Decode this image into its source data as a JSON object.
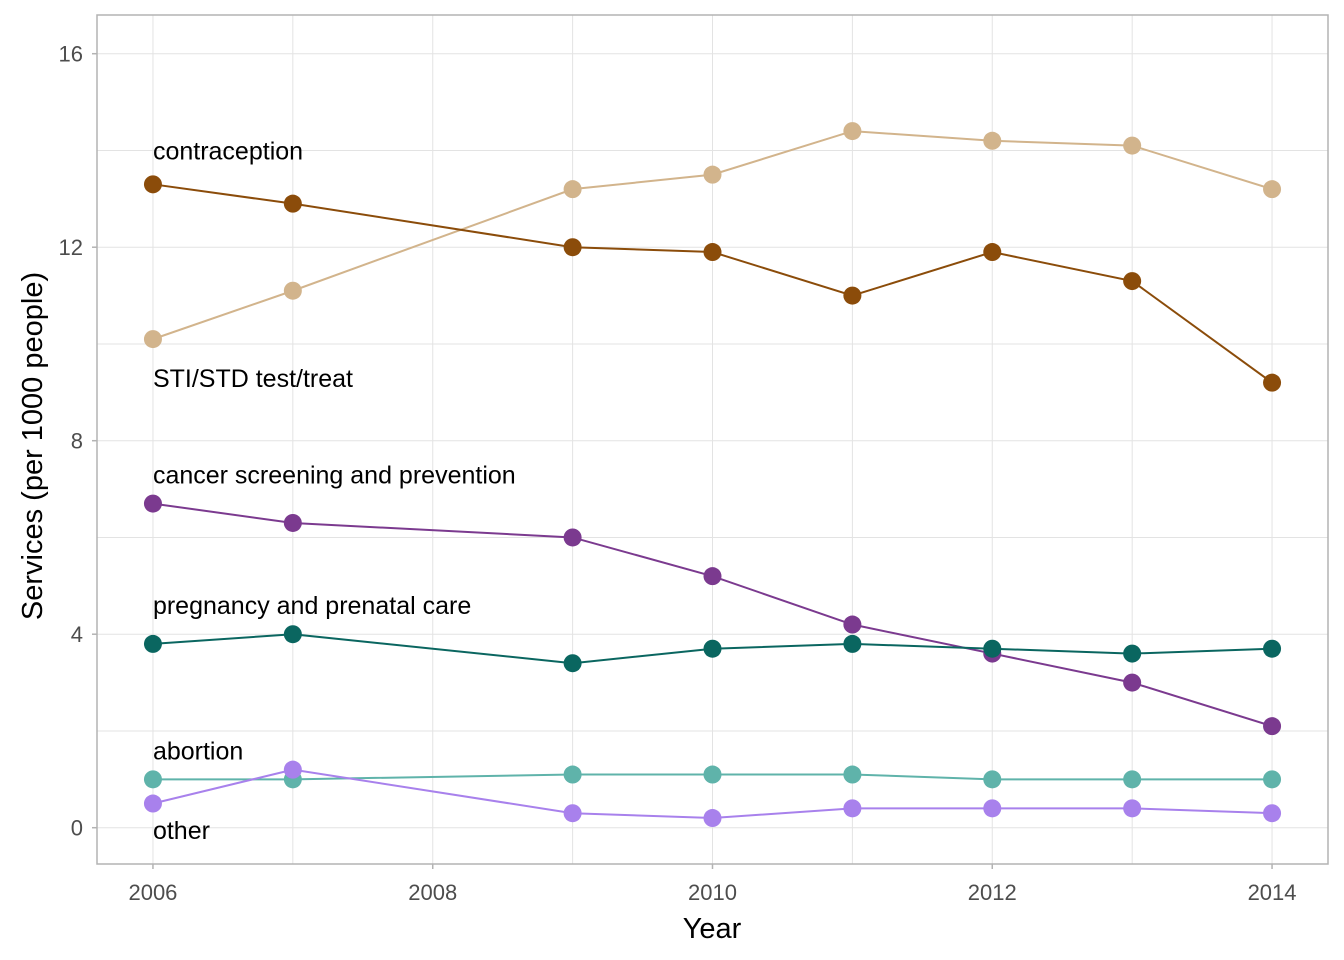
{
  "chart_data": {
    "type": "line",
    "title": "",
    "xlabel": "Year",
    "ylabel": "Services (per 1000 people)",
    "xlim": [
      2005.6,
      2014.4
    ],
    "ylim": [
      -0.75,
      16.8
    ],
    "x_ticks": [
      2006,
      2008,
      2010,
      2012,
      2014
    ],
    "y_ticks": [
      0,
      4,
      8,
      12,
      16
    ],
    "grid": true,
    "legend": "none",
    "x": [
      2006,
      2007,
      2009,
      2010,
      2011,
      2012,
      2013,
      2014
    ],
    "series": [
      {
        "name": "contraception",
        "color": "#d2b48c",
        "values": [
          10.1,
          11.1,
          13.2,
          13.5,
          14.4,
          14.2,
          14.1,
          13.2
        ],
        "label_y": 14.0
      },
      {
        "name": "STI/STD test/treat",
        "color": "#8b4c0a",
        "values": [
          13.3,
          12.9,
          12.0,
          11.9,
          11.0,
          11.9,
          11.3,
          9.2
        ],
        "label_y": 9.3
      },
      {
        "name": "cancer screening and prevention",
        "color": "#7b3a8f",
        "values": [
          6.7,
          6.3,
          6.0,
          5.2,
          4.2,
          3.6,
          3.0,
          2.1
        ],
        "label_y": 7.3
      },
      {
        "name": "pregnancy and prenatal care",
        "color": "#0a6660",
        "values": [
          3.8,
          4.0,
          3.4,
          3.7,
          3.8,
          3.7,
          3.6,
          3.7
        ],
        "label_y": 4.6
      },
      {
        "name": "abortion",
        "color": "#5fb3aa",
        "values": [
          1.0,
          1.0,
          1.1,
          1.1,
          1.1,
          1.0,
          1.0,
          1.0
        ],
        "label_y": 1.6
      },
      {
        "name": "other",
        "color": "#a881ec",
        "values": [
          0.5,
          1.2,
          0.3,
          0.2,
          0.4,
          0.4,
          0.4,
          0.3
        ],
        "label_y": -0.05
      }
    ]
  }
}
